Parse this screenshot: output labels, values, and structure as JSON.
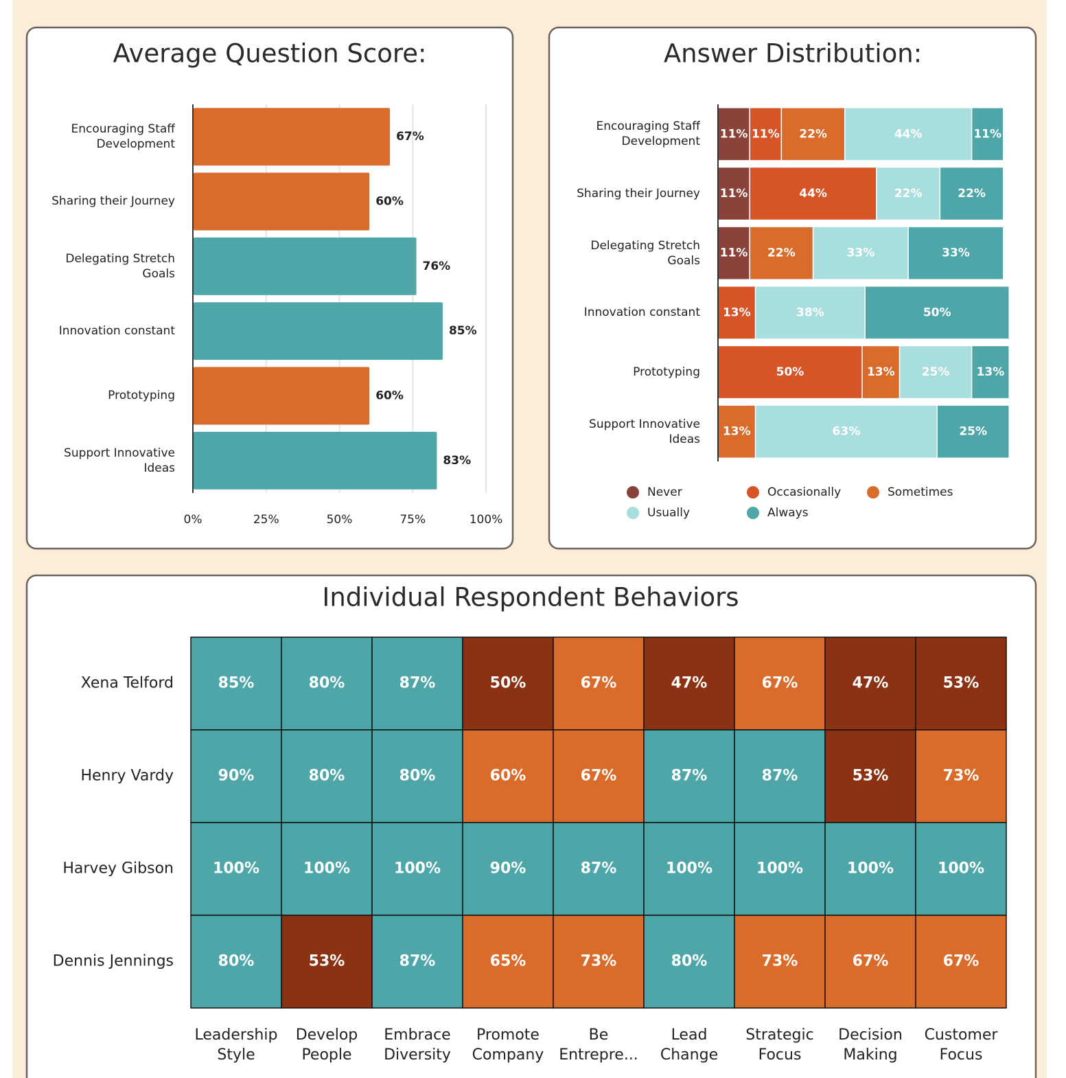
{
  "chart_data": [
    {
      "type": "bar",
      "orientation": "horizontal",
      "title": "Average Question Score:",
      "categories": [
        "Encouraging Staff Development",
        "Sharing their Journey",
        "Delegating Stretch Goals",
        "Innovation constant",
        "Prototyping",
        "Support Innovative Ideas"
      ],
      "values": [
        67,
        60,
        76,
        85,
        60,
        83
      ],
      "value_labels": [
        "67%",
        "60%",
        "76%",
        "85%",
        "60%",
        "83%"
      ],
      "colors": [
        "#d96b2b",
        "#d96b2b",
        "#4ea6a9",
        "#4ea6a9",
        "#d96b2b",
        "#4ea6a9"
      ],
      "xlim": [
        0,
        100
      ],
      "xticks": [
        {
          "value": 0,
          "label": "0%"
        },
        {
          "value": 25,
          "label": "25%"
        },
        {
          "value": 50,
          "label": "50%"
        },
        {
          "value": 75,
          "label": "75%"
        },
        {
          "value": 100,
          "label": "100%"
        }
      ],
      "grid": true
    },
    {
      "type": "bar",
      "orientation": "horizontal",
      "stacked": true,
      "title": "Answer Distribution:",
      "categories": [
        "Encouraging Staff Development",
        "Sharing their Journey",
        "Delegating Stretch Goals",
        "Innovation constant",
        "Prototyping",
        "Support Innovative Ideas"
      ],
      "xlim": [
        0,
        100
      ],
      "legend": "bottom",
      "series": [
        {
          "name": "Never",
          "color": "#8b4238",
          "values": [
            11,
            11,
            11,
            null,
            null,
            null
          ],
          "value_labels": [
            "11%",
            "11%",
            "11%",
            null,
            null,
            null
          ]
        },
        {
          "name": "Occasionally",
          "color": "#d75427",
          "values": [
            11,
            44,
            null,
            13,
            50,
            null
          ],
          "value_labels": [
            "11%",
            "44%",
            null,
            "13%",
            "50%",
            null
          ]
        },
        {
          "name": "Sometimes",
          "color": "#d96b2b",
          "values": [
            22,
            null,
            22,
            null,
            13,
            13
          ],
          "value_labels": [
            "22%",
            null,
            "22%",
            null,
            "13%",
            "13%"
          ]
        },
        {
          "name": "Usually",
          "color": "#a8dedd",
          "values": [
            44,
            22,
            33,
            38,
            25,
            63
          ],
          "value_labels": [
            "44%",
            "22%",
            "33%",
            "38%",
            "25%",
            "63%"
          ]
        },
        {
          "name": "Always",
          "color": "#4ea6a9",
          "values": [
            11,
            22,
            33,
            50,
            13,
            25
          ],
          "value_labels": [
            "11%",
            "22%",
            "33%",
            "50%",
            "13%",
            "25%"
          ]
        }
      ]
    },
    {
      "type": "heatmap",
      "title": "Individual Respondent Behaviors",
      "rows": [
        "Xena Telford",
        "Henry Vardy",
        "Harvey Gibson",
        "Dennis Jennings"
      ],
      "columns": [
        "Leadership Style",
        "Develop People",
        "Embrace Diversity",
        "Promote Company",
        "Be Entrepre...",
        "Lead Change",
        "Strategic Focus",
        "Decision Making",
        "Customer Focus"
      ],
      "values": [
        [
          85,
          80,
          87,
          50,
          67,
          47,
          67,
          47,
          53
        ],
        [
          90,
          80,
          80,
          60,
          67,
          87,
          87,
          53,
          73
        ],
        [
          100,
          100,
          100,
          90,
          87,
          100,
          100,
          100,
          100
        ],
        [
          80,
          53,
          87,
          65,
          73,
          80,
          73,
          67,
          67
        ]
      ],
      "value_labels": [
        [
          "85%",
          "80%",
          "87%",
          "50%",
          "67%",
          "47%",
          "67%",
          "47%",
          "53%"
        ],
        [
          "90%",
          "80%",
          "80%",
          "60%",
          "67%",
          "87%",
          "87%",
          "53%",
          "73%"
        ],
        [
          "100%",
          "100%",
          "100%",
          "90%",
          "87%",
          "100%",
          "100%",
          "100%",
          "100%"
        ],
        [
          "80%",
          "53%",
          "87%",
          "65%",
          "73%",
          "80%",
          "73%",
          "67%",
          "67%"
        ]
      ],
      "colors": [
        [
          "#4ea6a9",
          "#4ea6a9",
          "#4ea6a9",
          "#8b3214",
          "#d96b2b",
          "#8b3214",
          "#d96b2b",
          "#8b3214",
          "#8b3214"
        ],
        [
          "#4ea6a9",
          "#4ea6a9",
          "#4ea6a9",
          "#d96b2b",
          "#d96b2b",
          "#4ea6a9",
          "#4ea6a9",
          "#8b3214",
          "#d96b2b"
        ],
        [
          "#4ea6a9",
          "#4ea6a9",
          "#4ea6a9",
          "#4ea6a9",
          "#4ea6a9",
          "#4ea6a9",
          "#4ea6a9",
          "#4ea6a9",
          "#4ea6a9"
        ],
        [
          "#4ea6a9",
          "#8b3214",
          "#4ea6a9",
          "#d96b2b",
          "#d96b2b",
          "#4ea6a9",
          "#d96b2b",
          "#d96b2b",
          "#d96b2b"
        ]
      ]
    }
  ]
}
